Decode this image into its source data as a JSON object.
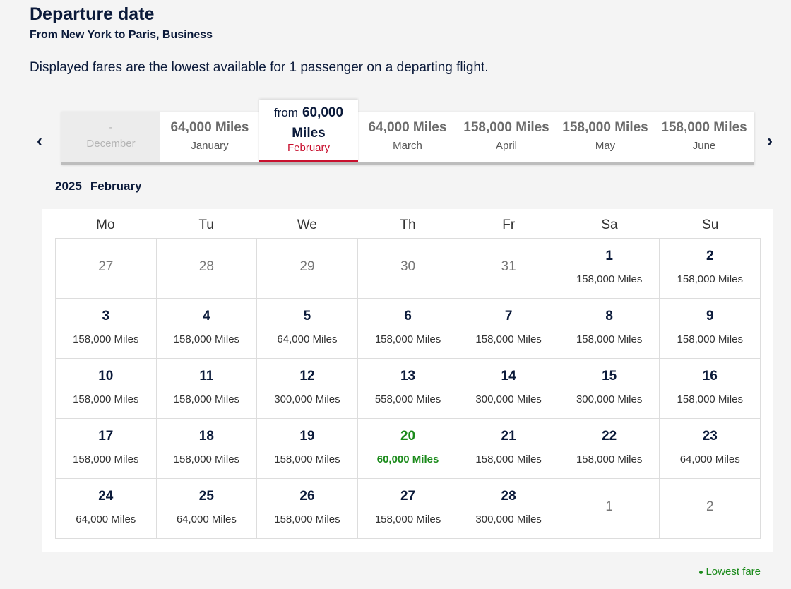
{
  "header": {
    "title": "Departure date",
    "subtitle": "From New York to Paris, Business",
    "note": "Displayed fares are the lowest available for 1 passenger on a departing flight."
  },
  "months": [
    {
      "price": "-",
      "month": "December",
      "disabled": true
    },
    {
      "price": "64,000 Miles",
      "month": "January"
    },
    {
      "prefix": "from",
      "price": "60,000 Miles",
      "month": "February",
      "selected": true
    },
    {
      "price": "64,000 Miles",
      "month": "March"
    },
    {
      "price": "158,000 Miles",
      "month": "April"
    },
    {
      "price": "158,000 Miles",
      "month": "May"
    },
    {
      "price": "158,000 Miles",
      "month": "June"
    }
  ],
  "calendar": {
    "year": "2025",
    "month": "February",
    "weekdays": [
      "Mo",
      "Tu",
      "We",
      "Th",
      "Fr",
      "Sa",
      "Su"
    ],
    "weeks": [
      [
        {
          "day": "27",
          "outside": true
        },
        {
          "day": "28",
          "outside": true
        },
        {
          "day": "29",
          "outside": true
        },
        {
          "day": "30",
          "outside": true
        },
        {
          "day": "31",
          "outside": true
        },
        {
          "day": "1",
          "price": "158,000 Miles"
        },
        {
          "day": "2",
          "price": "158,000 Miles"
        }
      ],
      [
        {
          "day": "3",
          "price": "158,000 Miles"
        },
        {
          "day": "4",
          "price": "158,000 Miles"
        },
        {
          "day": "5",
          "price": "64,000 Miles"
        },
        {
          "day": "6",
          "price": "158,000 Miles"
        },
        {
          "day": "7",
          "price": "158,000 Miles"
        },
        {
          "day": "8",
          "price": "158,000 Miles"
        },
        {
          "day": "9",
          "price": "158,000 Miles"
        }
      ],
      [
        {
          "day": "10",
          "price": "158,000 Miles"
        },
        {
          "day": "11",
          "price": "158,000 Miles"
        },
        {
          "day": "12",
          "price": "300,000 Miles"
        },
        {
          "day": "13",
          "price": "558,000 Miles"
        },
        {
          "day": "14",
          "price": "300,000 Miles"
        },
        {
          "day": "15",
          "price": "300,000 Miles"
        },
        {
          "day": "16",
          "price": "158,000 Miles"
        }
      ],
      [
        {
          "day": "17",
          "price": "158,000 Miles"
        },
        {
          "day": "18",
          "price": "158,000 Miles"
        },
        {
          "day": "19",
          "price": "158,000 Miles"
        },
        {
          "day": "20",
          "price": "60,000 Miles",
          "lowest": true
        },
        {
          "day": "21",
          "price": "158,000 Miles"
        },
        {
          "day": "22",
          "price": "158,000 Miles"
        },
        {
          "day": "23",
          "price": "64,000 Miles"
        }
      ],
      [
        {
          "day": "24",
          "price": "64,000 Miles"
        },
        {
          "day": "25",
          "price": "64,000 Miles"
        },
        {
          "day": "26",
          "price": "158,000 Miles"
        },
        {
          "day": "27",
          "price": "158,000 Miles"
        },
        {
          "day": "28",
          "price": "300,000 Miles"
        },
        {
          "day": "1",
          "outside": true
        },
        {
          "day": "2",
          "outside": true
        }
      ]
    ]
  },
  "legend": "Lowest fare"
}
